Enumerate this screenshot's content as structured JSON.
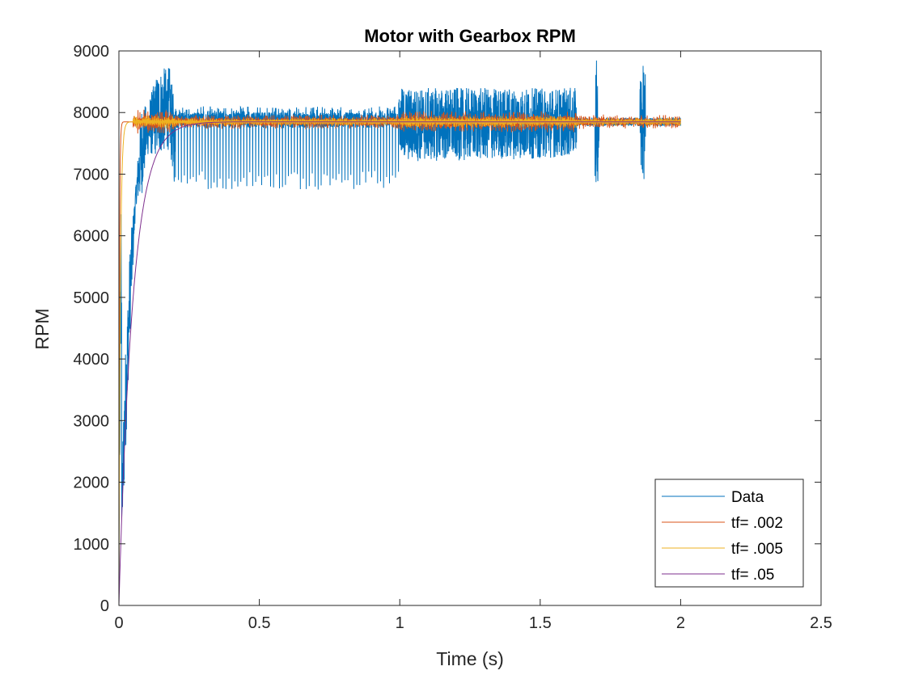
{
  "chart_data": {
    "type": "line",
    "title": "Motor with Gearbox RPM",
    "xlabel": "Time (s)",
    "ylabel": "RPM",
    "xlim": [
      0,
      2.5
    ],
    "ylim": [
      0,
      9000
    ],
    "xticks": [
      0,
      0.5,
      1,
      1.5,
      2,
      2.5
    ],
    "xtick_labels": [
      "0",
      "0.5",
      "1",
      "1.5",
      "2",
      "2.5"
    ],
    "yticks": [
      0,
      1000,
      2000,
      3000,
      4000,
      5000,
      6000,
      7000,
      8000,
      9000
    ],
    "ytick_labels": [
      "0",
      "1000",
      "2000",
      "3000",
      "4000",
      "5000",
      "6000",
      "7000",
      "8000",
      "9000"
    ],
    "grid": false,
    "legend_position": "bottom-right",
    "series": [
      {
        "name": "Data",
        "color": "#0072BD",
        "x_range": [
          0,
          2.0
        ],
        "description_points": {
          "x": [
            0,
            0.02,
            0.04,
            0.06,
            0.08,
            0.1,
            0.14,
            0.18,
            0.2,
            0.5,
            0.99,
            1.0,
            1.5,
            1.63,
            1.7,
            1.86,
            2.0
          ],
          "y_low": [
            0,
            2000,
            4400,
            6500,
            6600,
            7300,
            7300,
            7400,
            6750,
            6750,
            6750,
            7200,
            7250,
            7300,
            6850,
            6850,
            7750
          ],
          "y_high": [
            500,
            3800,
            5900,
            6800,
            8150,
            8100,
            8700,
            8750,
            8100,
            8100,
            8100,
            8400,
            8400,
            8400,
            8850,
            8800,
            7950
          ]
        }
      },
      {
        "name": "tf= .002",
        "color": "#D95319",
        "time_constant": 0.002,
        "final_value": 7850
      },
      {
        "name": "tf= .005",
        "color": "#EDB120",
        "time_constant": 0.005,
        "final_value": 7850
      },
      {
        "name": "tf= .05",
        "color": "#7E2F8E",
        "time_constant": 0.05,
        "final_value": 7850
      }
    ]
  }
}
